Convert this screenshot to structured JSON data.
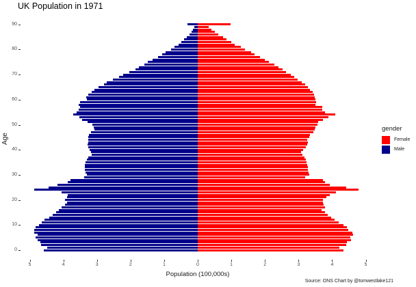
{
  "title": "UK Population in 1971",
  "ylabel": "Age",
  "xlabel": "Population (100,000s)",
  "caption": "Source: ONS   Chart by @tomwestlake121",
  "legend": {
    "title": "gender",
    "items": [
      {
        "label": "Female",
        "color": "#FF0000"
      },
      {
        "label": "Male",
        "color": "#00008B"
      }
    ]
  },
  "x_ticks": [
    "5",
    "4",
    "3",
    "2",
    "1",
    "0",
    "1",
    "2",
    "3",
    "4",
    "5"
  ],
  "y_ticks": [
    "0",
    "10",
    "20",
    "30",
    "40",
    "50",
    "60",
    "70",
    "80",
    "90"
  ],
  "chart_data": {
    "type": "bar",
    "orientation": "horizontal",
    "title": "UK Population in 1971",
    "xlabel": "Population (100,000s)",
    "ylabel": "Age",
    "xlim": [
      -5,
      5
    ],
    "ylim": [
      0,
      90
    ],
    "legend_position": "right",
    "legend_title": "gender",
    "grid": false,
    "categories": [
      0,
      1,
      2,
      3,
      4,
      5,
      6,
      7,
      8,
      9,
      10,
      11,
      12,
      13,
      14,
      15,
      16,
      17,
      18,
      19,
      20,
      21,
      22,
      23,
      24,
      25,
      26,
      27,
      28,
      29,
      30,
      31,
      32,
      33,
      34,
      35,
      36,
      37,
      38,
      39,
      40,
      41,
      42,
      43,
      44,
      45,
      46,
      47,
      48,
      49,
      50,
      51,
      52,
      53,
      54,
      55,
      56,
      57,
      58,
      59,
      60,
      61,
      62,
      63,
      64,
      65,
      66,
      67,
      68,
      69,
      70,
      71,
      72,
      73,
      74,
      75,
      76,
      77,
      78,
      79,
      80,
      81,
      82,
      83,
      84,
      85,
      86,
      87,
      88,
      89,
      90
    ],
    "series": [
      {
        "name": "Male",
        "color": "#00008B",
        "values": [
          4.59,
          4.48,
          4.66,
          4.69,
          4.77,
          4.83,
          4.77,
          4.87,
          4.87,
          4.83,
          4.73,
          4.64,
          4.57,
          4.41,
          4.31,
          4.22,
          4.13,
          4.05,
          3.96,
          3.9,
          3.96,
          3.9,
          3.86,
          4.05,
          4.87,
          4.45,
          4.18,
          3.87,
          3.79,
          3.38,
          3.3,
          3.35,
          3.37,
          3.37,
          3.37,
          3.33,
          3.3,
          3.25,
          3.15,
          3.17,
          3.22,
          3.26,
          3.28,
          3.26,
          3.25,
          3.25,
          3.24,
          3.18,
          3.08,
          3.1,
          3.14,
          3.28,
          3.45,
          3.52,
          3.7,
          3.6,
          3.55,
          3.5,
          3.55,
          3.5,
          3.3,
          3.32,
          3.26,
          3.15,
          3.08,
          2.95,
          2.8,
          2.7,
          2.52,
          2.34,
          2.22,
          2.04,
          1.85,
          1.75,
          1.58,
          1.48,
          1.35,
          1.18,
          1.05,
          0.95,
          0.8,
          0.7,
          0.58,
          0.48,
          0.4,
          0.33,
          0.24,
          0.19,
          0.15,
          0.1,
          0.3
        ]
      },
      {
        "name": "Female",
        "color": "#FF0000",
        "values": [
          4.34,
          4.22,
          4.42,
          4.45,
          4.56,
          4.54,
          4.62,
          4.6,
          4.49,
          4.43,
          4.34,
          4.19,
          4.07,
          3.97,
          3.87,
          3.79,
          3.69,
          3.78,
          3.75,
          3.73,
          3.73,
          3.83,
          3.94,
          4.11,
          4.79,
          4.41,
          3.94,
          3.78,
          3.72,
          3.2,
          3.32,
          3.3,
          3.27,
          3.27,
          3.25,
          3.24,
          3.22,
          3.17,
          3.11,
          3.08,
          3.14,
          3.22,
          3.26,
          3.28,
          3.25,
          3.32,
          3.35,
          3.44,
          3.48,
          3.5,
          3.57,
          3.58,
          3.72,
          3.9,
          4.1,
          3.78,
          3.7,
          3.7,
          3.5,
          3.52,
          3.5,
          3.48,
          3.47,
          3.43,
          3.35,
          3.28,
          3.2,
          3.1,
          2.97,
          2.88,
          2.78,
          2.62,
          2.52,
          2.41,
          2.28,
          2.12,
          2.0,
          1.85,
          1.7,
          1.58,
          1.4,
          1.28,
          1.1,
          1.0,
          0.85,
          0.75,
          0.62,
          0.5,
          0.4,
          0.32,
          0.98
        ]
      }
    ]
  }
}
